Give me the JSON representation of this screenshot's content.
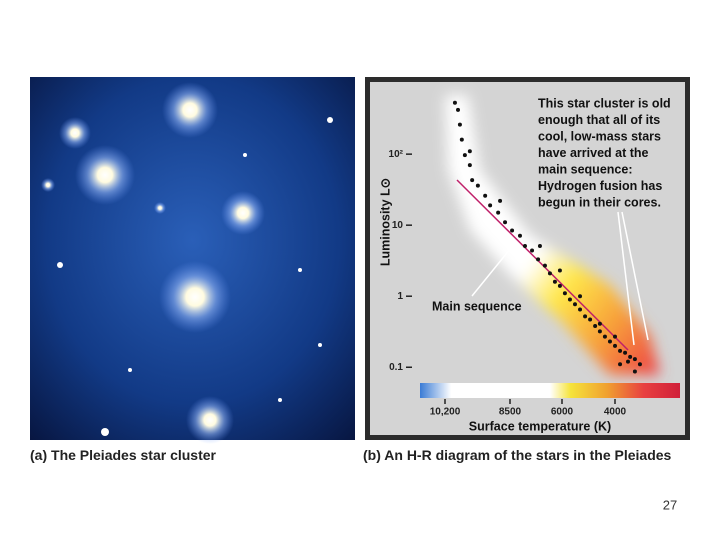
{
  "caption_a": {
    "label": "(a)",
    "text": "The Pleiades star cluster"
  },
  "caption_b": {
    "label": "(b)",
    "text": "An H-R diagram of the stars in the Pleiades"
  },
  "page_number": "27",
  "chart_data": {
    "type": "scatter",
    "y_label": "Luminosity L⊙",
    "x_label": "Surface temperature (K)",
    "annotations": [
      {
        "lines": [
          "This star cluster is old",
          "enough that all of its",
          "cool, low-mass stars",
          "have arrived at the",
          "main sequence:",
          "Hydrogen fusion has",
          "begun in their cores."
        ]
      },
      {
        "lines": [
          "Main sequence"
        ]
      }
    ],
    "yscale": "log",
    "ylim": [
      0.06,
      800
    ],
    "yticks": [
      {
        "value": 100,
        "label": "10²"
      },
      10,
      1,
      0.1
    ],
    "xlim": [
      10900,
      1550
    ],
    "xticks": [
      {
        "value": 10200,
        "label": "10,200"
      },
      8500,
      6000,
      4000
    ],
    "x": [
      9940,
      9860,
      9810,
      9760,
      9680,
      9550,
      9490,
      9340,
      9150,
      9020,
      8810,
      8630,
      8400,
      8020,
      7780,
      7440,
      7150,
      6820,
      6580,
      6340,
      6100,
      5890,
      5700,
      5510,
      5320,
      5130,
      4940,
      4750,
      4570,
      4380,
      4190,
      4000,
      3810,
      3620,
      3430,
      3250,
      3060,
      3510,
      3810,
      3250,
      8760,
      7060,
      6100,
      5320,
      4570,
      4000,
      9550
    ],
    "series": [
      {
        "color": "#111111",
        "values": [
          530,
          420,
          260,
          160,
          97,
          70,
          43,
          36,
          26,
          19,
          15,
          11,
          8.4,
          7.1,
          5.1,
          4.4,
          3.3,
          2.7,
          2.1,
          1.6,
          1.4,
          1.1,
          0.9,
          0.77,
          0.65,
          0.52,
          0.47,
          0.38,
          0.32,
          0.27,
          0.23,
          0.2,
          0.17,
          0.16,
          0.14,
          0.13,
          0.11,
          0.12,
          0.11,
          0.087,
          22,
          5.1,
          2.3,
          1.0,
          0.41,
          0.27,
          110
        ]
      }
    ]
  }
}
